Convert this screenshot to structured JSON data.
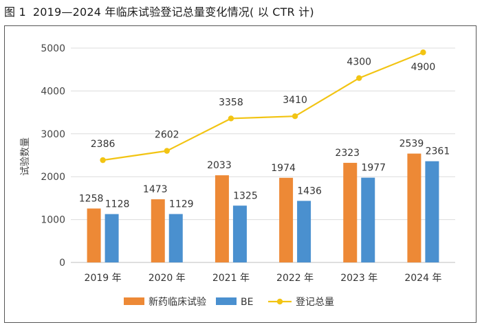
{
  "figure": {
    "label": "图 1",
    "caption": "2019—2024 年临床试验登记总量变化情况( 以 CTR 计)"
  },
  "chart_data": {
    "type": "bar",
    "categories": [
      "2019 年",
      "2020 年",
      "2021 年",
      "2022 年",
      "2023 年",
      "2024 年"
    ],
    "series": [
      {
        "name": "新药临床试验",
        "type": "bar",
        "color": "#ED8936",
        "values": [
          1258,
          1473,
          2033,
          1974,
          2323,
          2539
        ]
      },
      {
        "name": "BE",
        "type": "bar",
        "color": "#4A90CF",
        "values": [
          1128,
          1129,
          1325,
          1436,
          1977,
          2361
        ]
      },
      {
        "name": "登记总量",
        "type": "line",
        "color": "#F2C413",
        "values": [
          2386,
          2602,
          3358,
          3410,
          4300,
          4900
        ]
      }
    ],
    "ylabel": "试验数量",
    "xlabel": "",
    "ylim": [
      0,
      5000
    ],
    "yticks": [
      0,
      1000,
      2000,
      3000,
      4000,
      5000
    ],
    "grid": true,
    "legend": "bottom"
  }
}
